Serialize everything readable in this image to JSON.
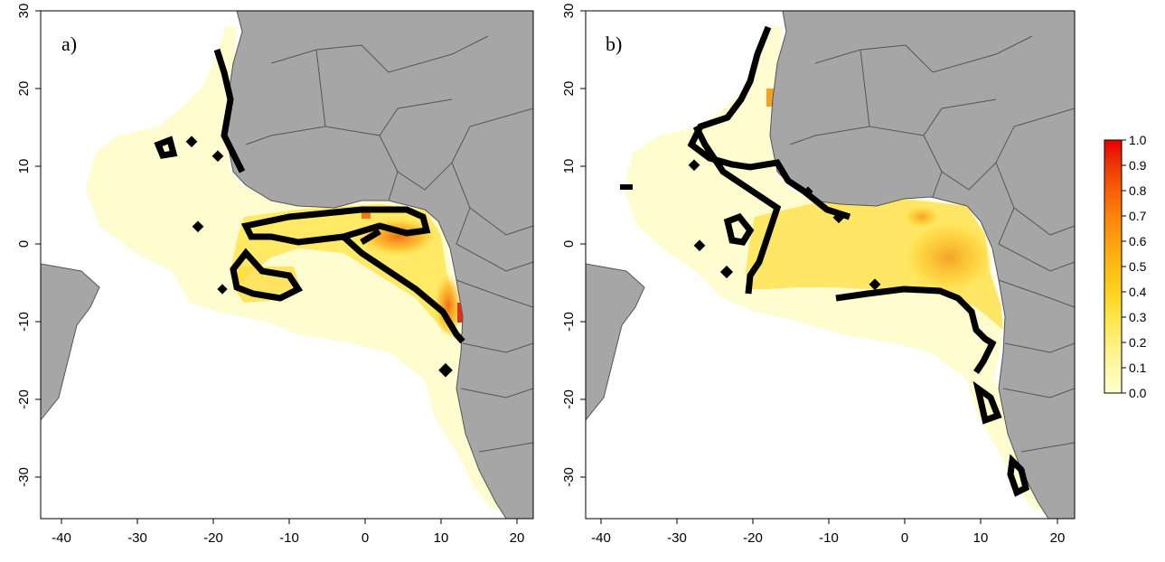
{
  "figure": {
    "panels": [
      {
        "id": "a",
        "label": "a)",
        "x_ticks": [
          "-40",
          "-30",
          "-20",
          "-10",
          "0",
          "10",
          "20"
        ],
        "y_ticks": [
          "30",
          "20",
          "10",
          "0",
          "-10",
          "-20",
          "-30"
        ]
      },
      {
        "id": "b",
        "label": "b)",
        "x_ticks": [
          "-40",
          "-30",
          "-20",
          "-10",
          "0",
          "10",
          "20"
        ],
        "y_ticks": [
          "30",
          "20",
          "10",
          "0",
          "-10",
          "-20",
          "-30"
        ]
      }
    ],
    "legend": {
      "ticks": [
        "1.0",
        "0.9",
        "0.8",
        "0.7",
        "0.6",
        "0.5",
        "0.4",
        "0.3",
        "0.2",
        "0.1",
        "0.0"
      ],
      "colors": [
        "#ffffcc",
        "#fff7a8",
        "#ffef7a",
        "#ffe54a",
        "#ffd21e",
        "#ffbb14",
        "#ffa010",
        "#ff820c",
        "#f86008",
        "#ee3804",
        "#e80000"
      ]
    },
    "colors": {
      "land": "#a6a6a6",
      "land_border": "#555555",
      "contour": "#000000",
      "ocean": "#ffffff"
    }
  }
}
